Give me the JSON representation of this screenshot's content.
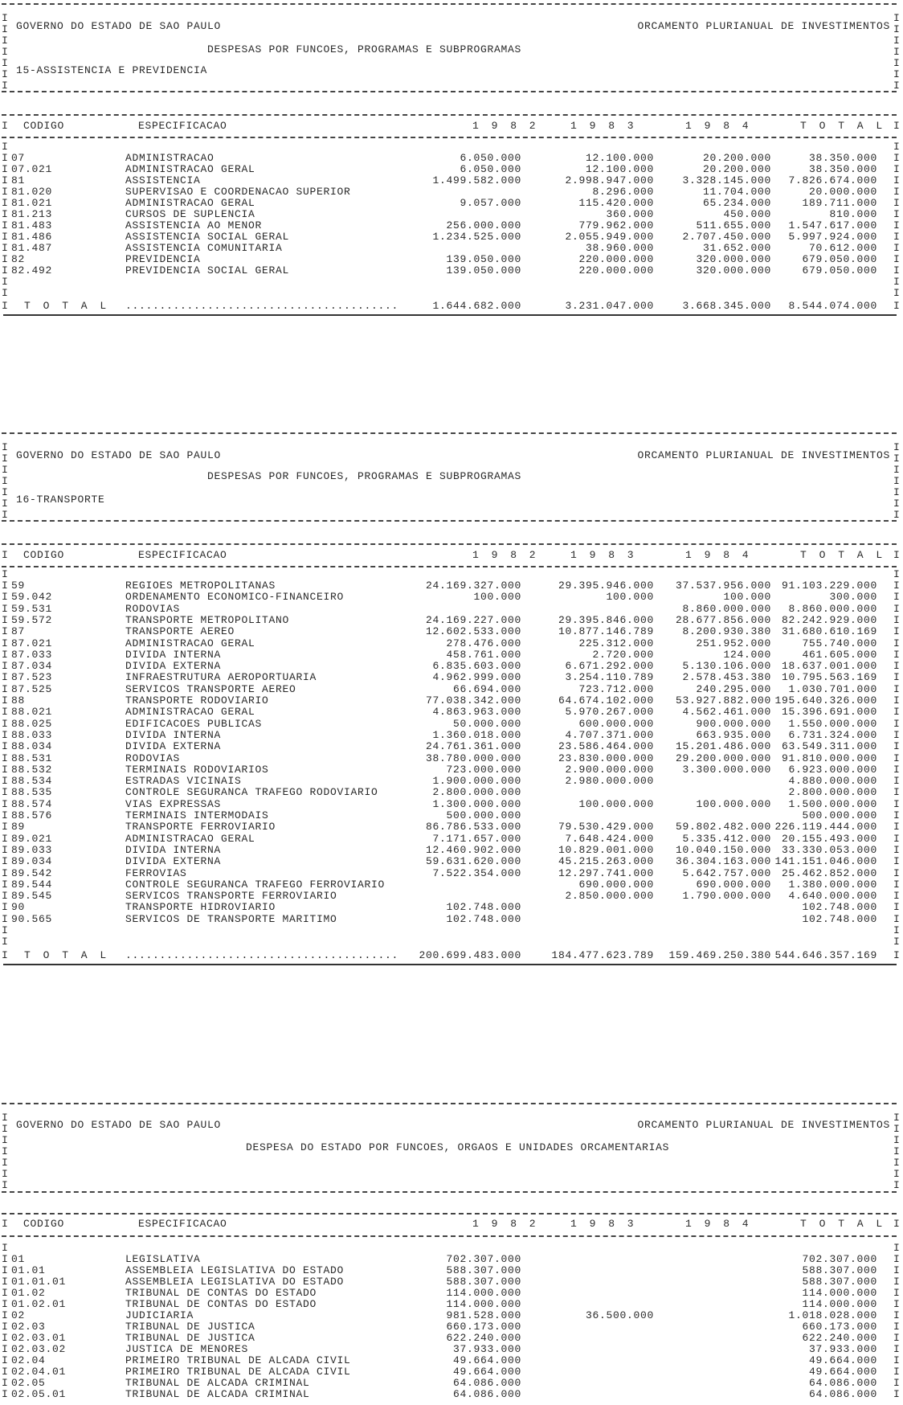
{
  "frame_char": "I",
  "org": "GOVERNO DO ESTADO DE SAO PAULO",
  "report": "ORCAMENTO PLURIANUAL DE INVESTIMENTOS",
  "columns": {
    "code": "CODIGO",
    "spec": "ESPECIFICACAO",
    "y1982": "1 9 8 2",
    "y1983": "1 9 8 3",
    "y1984": "1 9 8 4",
    "total": "T O T A L"
  },
  "total_leader": "........................................",
  "tables": [
    {
      "title": "DESPESAS POR FUNCOES, PROGRAMAS E SUBPROGRAMAS",
      "subtitle": "15-ASSISTENCIA E PREVIDENCIA",
      "rows": [
        [
          "07",
          "ADMINISTRACAO",
          "6.050.000",
          "12.100.000",
          "20.200.000",
          "38.350.000"
        ],
        [
          "07.021",
          "ADMINISTRACAO GERAL",
          "6.050.000",
          "12.100.000",
          "20.200.000",
          "38.350.000"
        ],
        [
          "81",
          "ASSISTENCIA",
          "1.499.582.000",
          "2.998.947.000",
          "3.328.145.000",
          "7.826.674.000"
        ],
        [
          "81.020",
          "SUPERVISAO E COORDENACAO SUPERIOR",
          "",
          "8.296.000",
          "11.704.000",
          "20.000.000"
        ],
        [
          "81.021",
          "ADMINISTRACAO GERAL",
          "9.057.000",
          "115.420.000",
          "65.234.000",
          "189.711.000"
        ],
        [
          "81.213",
          "CURSOS DE SUPLENCIA",
          "",
          "360.000",
          "450.000",
          "810.000"
        ],
        [
          "81.483",
          "ASSISTENCIA AO MENOR",
          "256.000.000",
          "779.962.000",
          "511.655.000",
          "1.547.617.000"
        ],
        [
          "81.486",
          "ASSISTENCIA SOCIAL GERAL",
          "1.234.525.000",
          "2.055.949.000",
          "2.707.450.000",
          "5.997.924.000"
        ],
        [
          "81.487",
          "ASSISTENCIA COMUNITARIA",
          "",
          "38.960.000",
          "31.652.000",
          "70.612.000"
        ],
        [
          "82",
          "PREVIDENCIA",
          "139.050.000",
          "220.000.000",
          "320.000.000",
          "679.050.000"
        ],
        [
          "82.492",
          "PREVIDENCIA SOCIAL GERAL",
          "139.050.000",
          "220.000.000",
          "320.000.000",
          "679.050.000"
        ]
      ],
      "total": {
        "label": "T O T A L",
        "values": [
          "1.644.682.000",
          "3.231.047.000",
          "3.668.345.000",
          "8.544.074.000"
        ]
      }
    },
    {
      "title": "DESPESAS POR FUNCOES, PROGRAMAS E SUBPROGRAMAS",
      "subtitle": "16-TRANSPORTE",
      "rows": [
        [
          "59",
          "REGIOES METROPOLITANAS",
          "24.169.327.000",
          "29.395.946.000",
          "37.537.956.000",
          "91.103.229.000"
        ],
        [
          "59.042",
          "ORDENAMENTO ECONOMICO-FINANCEIRO",
          "100.000",
          "100.000",
          "100.000",
          "300.000"
        ],
        [
          "59.531",
          "RODOVIAS",
          "",
          "",
          "8.860.000.000",
          "8.860.000.000"
        ],
        [
          "59.572",
          "TRANSPORTE METROPOLITANO",
          "24.169.227.000",
          "29.395.846.000",
          "28.677.856.000",
          "82.242.929.000"
        ],
        [
          "87",
          "TRANSPORTE AEREO",
          "12.602.533.000",
          "10.877.146.789",
          "8.200.930.380",
          "31.680.610.169"
        ],
        [
          "87.021",
          "ADMINISTRACAO GERAL",
          "278.476.000",
          "225.312.000",
          "251.952.000",
          "755.740.000"
        ],
        [
          "87.033",
          "DIVIDA INTERNA",
          "458.761.000",
          "2.720.000",
          "124.000",
          "461.605.000"
        ],
        [
          "87.034",
          "DIVIDA EXTERNA",
          "6.835.603.000",
          "6.671.292.000",
          "5.130.106.000",
          "18.637.001.000"
        ],
        [
          "87.523",
          "INFRAESTRUTURA AEROPORTUARIA",
          "4.962.999.000",
          "3.254.110.789",
          "2.578.453.380",
          "10.795.563.169"
        ],
        [
          "87.525",
          "SERVICOS TRANSPORTE AEREO",
          "66.694.000",
          "723.712.000",
          "240.295.000",
          "1.030.701.000"
        ],
        [
          "88",
          "TRANSPORTE RODOVIARIO",
          "77.038.342.000",
          "64.674.102.000",
          "53.927.882.000",
          "195.640.326.000"
        ],
        [
          "88.021",
          "ADMINISTRACAO GERAL",
          "4.863.963.000",
          "5.970.267.000",
          "4.562.461.000",
          "15.396.691.000"
        ],
        [
          "88.025",
          "EDIFICACOES PUBLICAS",
          "50.000.000",
          "600.000.000",
          "900.000.000",
          "1.550.000.000"
        ],
        [
          "88.033",
          "DIVIDA INTERNA",
          "1.360.018.000",
          "4.707.371.000",
          "663.935.000",
          "6.731.324.000"
        ],
        [
          "88.034",
          "DIVIDA EXTERNA",
          "24.761.361.000",
          "23.586.464.000",
          "15.201.486.000",
          "63.549.311.000"
        ],
        [
          "88.531",
          "RODOVIAS",
          "38.780.000.000",
          "23.830.000.000",
          "29.200.000.000",
          "91.810.000.000"
        ],
        [
          "88.532",
          "TERMINAIS RODOVIARIOS",
          "723.000.000",
          "2.900.000.000",
          "3.300.000.000",
          "6.923.000.000"
        ],
        [
          "88.534",
          "ESTRADAS VICINAIS",
          "1.900.000.000",
          "2.980.000.000",
          "",
          "4.880.000.000"
        ],
        [
          "88.535",
          "CONTROLE SEGURANCA TRAFEGO RODOVIARIO",
          "2.800.000.000",
          "",
          "",
          "2.800.000.000"
        ],
        [
          "88.574",
          "VIAS EXPRESSAS",
          "1.300.000.000",
          "100.000.000",
          "100.000.000",
          "1.500.000.000"
        ],
        [
          "88.576",
          "TERMINAIS INTERMODAIS",
          "500.000.000",
          "",
          "",
          "500.000.000"
        ],
        [
          "89",
          "TRANSPORTE FERROVIARIO",
          "86.786.533.000",
          "79.530.429.000",
          "59.802.482.000",
          "226.119.444.000"
        ],
        [
          "89.021",
          "ADMINISTRACAO GERAL",
          "7.171.657.000",
          "7.648.424.000",
          "5.335.412.000",
          "20.155.493.000"
        ],
        [
          "89.033",
          "DIVIDA INTERNA",
          "12.460.902.000",
          "10.829.001.000",
          "10.040.150.000",
          "33.330.053.000"
        ],
        [
          "89.034",
          "DIVIDA EXTERNA",
          "59.631.620.000",
          "45.215.263.000",
          "36.304.163.000",
          "141.151.046.000"
        ],
        [
          "89.542",
          "FERROVIAS",
          "7.522.354.000",
          "12.297.741.000",
          "5.642.757.000",
          "25.462.852.000"
        ],
        [
          "89.544",
          "CONTROLE SEGURANCA TRAFEGO FERROVIARIO",
          "",
          "690.000.000",
          "690.000.000",
          "1.380.000.000"
        ],
        [
          "89.545",
          "SERVICOS TRANSPORTE FERROVIARIO",
          "",
          "2.850.000.000",
          "1.790.000.000",
          "4.640.000.000"
        ],
        [
          "90",
          "TRANSPORTE HIDROVIARIO",
          "102.748.000",
          "",
          "",
          "102.748.000"
        ],
        [
          "90.565",
          "SERVICOS DE TRANSPORTE MARITIMO",
          "102.748.000",
          "",
          "",
          "102.748.000"
        ]
      ],
      "total": {
        "label": "T O T A L",
        "values": [
          "200.699.483.000",
          "184.477.623.789",
          "159.469.250.380",
          "544.646.357.169"
        ]
      }
    },
    {
      "title": "DESPESA DO ESTADO POR FUNCOES, ORGAOS E UNIDADES ORCAMENTARIAS",
      "subtitle": "",
      "rows": [
        [
          "01",
          "LEGISLATIVA",
          "702.307.000",
          "",
          "",
          "702.307.000"
        ],
        [
          "01.01",
          "ASSEMBLEIA LEGISLATIVA DO ESTADO",
          "588.307.000",
          "",
          "",
          "588.307.000"
        ],
        [
          "01.01.01",
          "ASSEMBLEIA LEGISLATIVA DO ESTADO",
          "588.307.000",
          "",
          "",
          "588.307.000"
        ],
        [
          "01.02",
          "TRIBUNAL DE CONTAS DO ESTADO",
          "114.000.000",
          "",
          "",
          "114.000.000"
        ],
        [
          "01.02.01",
          "TRIBUNAL DE CONTAS DO ESTADO",
          "114.000.000",
          "",
          "",
          "114.000.000"
        ],
        [
          "02",
          "JUDICIARIA",
          "981.528.000",
          "36.500.000",
          "",
          "1.018.028.000"
        ],
        [
          "02.03",
          "TRIBUNAL DE JUSTICA",
          "660.173.000",
          "",
          "",
          "660.173.000"
        ],
        [
          "02.03.01",
          "TRIBUNAL DE JUSTICA",
          "622.240.000",
          "",
          "",
          "622.240.000"
        ],
        [
          "02.03.02",
          "JUSTICA DE MENORES",
          "37.933.000",
          "",
          "",
          "37.933.000"
        ],
        [
          "02.04",
          "PRIMEIRO TRIBUNAL DE ALCADA CIVIL",
          "49.664.000",
          "",
          "",
          "49.664.000"
        ],
        [
          "02.04.01",
          "PRIMEIRO TRIBUNAL DE ALCADA CIVIL",
          "49.664.000",
          "",
          "",
          "49.664.000"
        ],
        [
          "02.05",
          "TRIBUNAL DE ALCADA CRIMINAL",
          "64.086.000",
          "",
          "",
          "64.086.000"
        ],
        [
          "02.05.01",
          "TRIBUNAL DE ALCADA CRIMINAL",
          "64.086.000",
          "",
          "",
          "64.086.000"
        ]
      ]
    }
  ]
}
